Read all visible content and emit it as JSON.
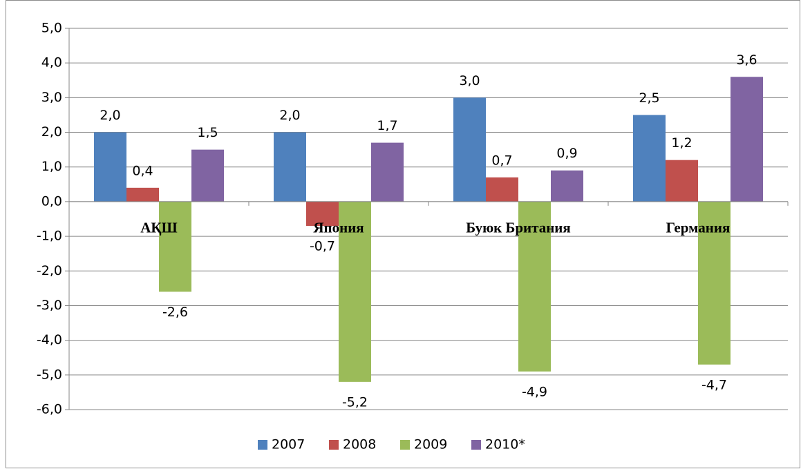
{
  "chart_data": {
    "type": "bar",
    "categories": [
      "АҚШ",
      "Япония",
      "Буюк Британия",
      "Германия"
    ],
    "series": [
      {
        "name": "2007",
        "color": "#4f81bd",
        "values": [
          2.0,
          2.0,
          3.0,
          2.5
        ],
        "value_labels": [
          "2,0",
          "2,0",
          "3,0",
          "2,5"
        ]
      },
      {
        "name": "2008",
        "color": "#c0504d",
        "values": [
          0.4,
          -0.7,
          0.7,
          1.2
        ],
        "value_labels": [
          "0,4",
          "-0,7",
          "0,7",
          "1,2"
        ]
      },
      {
        "name": "2009",
        "color": "#9bbb59",
        "values": [
          -2.6,
          -5.2,
          -4.9,
          -4.7
        ],
        "value_labels": [
          "-2,6",
          "-5,2",
          "-4,9",
          "-4,7"
        ]
      },
      {
        "name": "2010*",
        "color": "#8064a2",
        "values": [
          1.5,
          1.7,
          0.9,
          3.6
        ],
        "value_labels": [
          "1,5",
          "1,7",
          "0,9",
          "3,6"
        ]
      }
    ],
    "ylim": [
      -6,
      5
    ],
    "yticks": [
      {
        "value": -6,
        "label": "-6,0"
      },
      {
        "value": -5,
        "label": "-5,0"
      },
      {
        "value": -4,
        "label": "-4,0"
      },
      {
        "value": -3,
        "label": "-3,0"
      },
      {
        "value": -2,
        "label": "-2,0"
      },
      {
        "value": -1,
        "label": "-1,0"
      },
      {
        "value": 0,
        "label": "0,0"
      },
      {
        "value": 1,
        "label": "1,0"
      },
      {
        "value": 2,
        "label": "2,0"
      },
      {
        "value": 3,
        "label": "3,0"
      },
      {
        "value": 4,
        "label": "4,0"
      },
      {
        "value": 5,
        "label": "5,0"
      }
    ],
    "grid": true,
    "legend": "bottom"
  }
}
